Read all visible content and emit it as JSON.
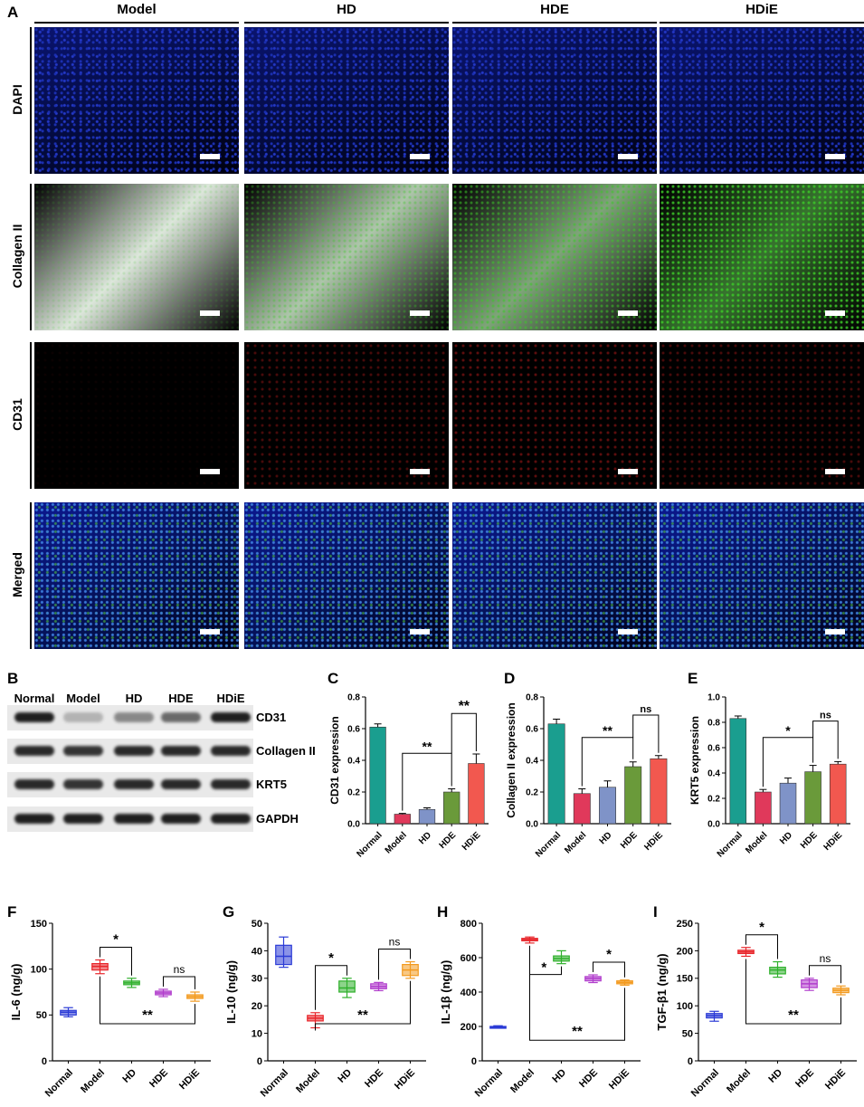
{
  "panel_letters": {
    "A": "A",
    "B": "B",
    "C": "C",
    "D": "D",
    "E": "E",
    "F": "F",
    "G": "G",
    "H": "H",
    "I": "I"
  },
  "panelA": {
    "columns": [
      "Model",
      "HD",
      "HDE",
      "HDiE"
    ],
    "rows": [
      "DAPI",
      "Collagen II",
      "CD31",
      "Merged"
    ]
  },
  "panelB": {
    "lanes": [
      "Normal",
      "Model",
      "HD",
      "HDE",
      "HDiE"
    ],
    "proteins": [
      "CD31",
      "Collagen II",
      "KRT5",
      "GAPDH"
    ]
  },
  "colors": {
    "Normal": "#1a9e8f",
    "Model": "#e0395b",
    "HD": "#7f93c8",
    "HDE": "#6a9a3a",
    "HDiE": "#f2584f",
    "box_Normal": "#2b3bd6",
    "box_Model": "#e8252a",
    "box_HD": "#2fb02c",
    "box_HDE": "#b13dcc",
    "box_HDiE": "#f39a1f"
  },
  "chart_data": [
    {
      "panel": "C",
      "type": "bar",
      "categories": [
        "Normal",
        "Model",
        "HD",
        "HDE",
        "HDiE"
      ],
      "values": [
        0.61,
        0.06,
        0.09,
        0.2,
        0.38
      ],
      "errors": [
        0.02,
        0.005,
        0.01,
        0.02,
        0.06
      ],
      "ylabel": "CD31 expression",
      "ylim": [
        0,
        0.8
      ],
      "yticks": [
        "0.0",
        "0.2",
        "0.4",
        "0.6",
        "0.8"
      ],
      "sig": [
        {
          "from": "Model",
          "to": "HDE",
          "label": "**"
        },
        {
          "from": "HDE",
          "to": "HDiE",
          "label": "**"
        }
      ]
    },
    {
      "panel": "D",
      "type": "bar",
      "categories": [
        "Normal",
        "Model",
        "HD",
        "HDE",
        "HDiE"
      ],
      "values": [
        0.63,
        0.19,
        0.23,
        0.36,
        0.41
      ],
      "errors": [
        0.03,
        0.03,
        0.04,
        0.03,
        0.02
      ],
      "ylabel": "Collagen II expression",
      "ylim": [
        0,
        0.8
      ],
      "yticks": [
        "0.0",
        "0.2",
        "0.4",
        "0.6",
        "0.8"
      ],
      "sig": [
        {
          "from": "Model",
          "to": "HDE",
          "label": "**"
        },
        {
          "from": "HDE",
          "to": "HDiE",
          "label": "ns"
        }
      ]
    },
    {
      "panel": "E",
      "type": "bar",
      "categories": [
        "Normal",
        "Model",
        "HD",
        "HDE",
        "HDiE"
      ],
      "values": [
        0.83,
        0.25,
        0.32,
        0.41,
        0.47
      ],
      "errors": [
        0.02,
        0.02,
        0.04,
        0.05,
        0.02
      ],
      "ylabel": "KRT5 expression",
      "ylim": [
        0,
        1.0
      ],
      "yticks": [
        "0.0",
        "0.2",
        "0.4",
        "0.6",
        "0.8",
        "1.0"
      ],
      "sig": [
        {
          "from": "Model",
          "to": "HDE",
          "label": "*"
        },
        {
          "from": "HDE",
          "to": "HDiE",
          "label": "ns"
        }
      ]
    },
    {
      "panel": "F",
      "type": "box",
      "categories": [
        "Normal",
        "Model",
        "HD",
        "HDE",
        "HDiE"
      ],
      "boxes": [
        [
          48,
          50,
          53,
          55,
          58
        ],
        [
          95,
          99,
          103,
          106,
          110
        ],
        [
          80,
          83,
          85,
          87,
          90
        ],
        [
          70,
          72,
          74,
          76,
          78
        ],
        [
          65,
          68,
          70,
          72,
          75
        ]
      ],
      "ylabel": "IL-6 (ng/g)",
      "ylim": [
        0,
        150
      ],
      "yticks": [
        "0",
        "50",
        "100",
        "150"
      ],
      "sig": [
        {
          "type": "bracket",
          "from": "Model",
          "to": "HD",
          "label": "*"
        },
        {
          "type": "bracket",
          "from": "HDE",
          "to": "HDiE",
          "label": "ns"
        },
        {
          "type": "under",
          "from": "Model",
          "to": "HDiE",
          "label": "**"
        }
      ]
    },
    {
      "panel": "G",
      "type": "box",
      "categories": [
        "Normal",
        "Model",
        "HD",
        "HDE",
        "HDiE"
      ],
      "boxes": [
        [
          34,
          35,
          38,
          42,
          45
        ],
        [
          12,
          14.5,
          15.5,
          16.5,
          17.5
        ],
        [
          23,
          25,
          26.5,
          29,
          30
        ],
        [
          25.5,
          26.2,
          27,
          28,
          28.5
        ],
        [
          30,
          31,
          33,
          35,
          36
        ]
      ],
      "ylabel": "IL-10 (ng/g)",
      "ylim": [
        0,
        50
      ],
      "yticks": [
        "0",
        "10",
        "20",
        "30",
        "40",
        "50"
      ],
      "sig": [
        {
          "type": "bracket",
          "from": "Model",
          "to": "HD",
          "label": "*"
        },
        {
          "type": "bracket",
          "from": "HDE",
          "to": "HDiE",
          "label": "ns"
        },
        {
          "type": "under",
          "from": "Model",
          "to": "HDiE",
          "label": "**"
        }
      ]
    },
    {
      "panel": "H",
      "type": "box",
      "categories": [
        "Normal",
        "Model",
        "HD",
        "HDE",
        "HDiE"
      ],
      "boxes": [
        [
          190,
          192,
          196,
          200,
          204
        ],
        [
          685,
          698,
          706,
          712,
          720
        ],
        [
          565,
          580,
          595,
          610,
          640
        ],
        [
          455,
          465,
          478,
          490,
          500
        ],
        [
          440,
          448,
          456,
          465,
          470
        ]
      ],
      "ylabel": "IL-1β (ng/g)",
      "ylim": [
        0,
        800
      ],
      "yticks": [
        "0",
        "200",
        "400",
        "600",
        "800"
      ],
      "sig": [
        {
          "type": "under",
          "from": "Model",
          "to": "HD",
          "label": "*"
        },
        {
          "type": "bracket",
          "from": "HDE",
          "to": "HDiE",
          "label": "*"
        },
        {
          "type": "under",
          "from": "Model",
          "to": "HDiE",
          "label": "**"
        }
      ]
    },
    {
      "panel": "I",
      "type": "box",
      "categories": [
        "Normal",
        "Model",
        "HD",
        "HDE",
        "HDiE"
      ],
      "boxes": [
        [
          72,
          78,
          82,
          86,
          90
        ],
        [
          190,
          195,
          198,
          201,
          206
        ],
        [
          152,
          158,
          165,
          170,
          180
        ],
        [
          128,
          133,
          140,
          147,
          150
        ],
        [
          120,
          124,
          128,
          132,
          136
        ]
      ],
      "ylabel": "TGF-β1 (ng/g)",
      "ylim": [
        0,
        250
      ],
      "yticks": [
        "0",
        "50",
        "100",
        "150",
        "200",
        "250"
      ],
      "sig": [
        {
          "type": "bracket",
          "from": "Model",
          "to": "HD",
          "label": "*"
        },
        {
          "type": "bracket",
          "from": "HDE",
          "to": "HDiE",
          "label": "ns"
        },
        {
          "type": "under",
          "from": "Model",
          "to": "HDiE",
          "label": "**"
        }
      ]
    }
  ]
}
